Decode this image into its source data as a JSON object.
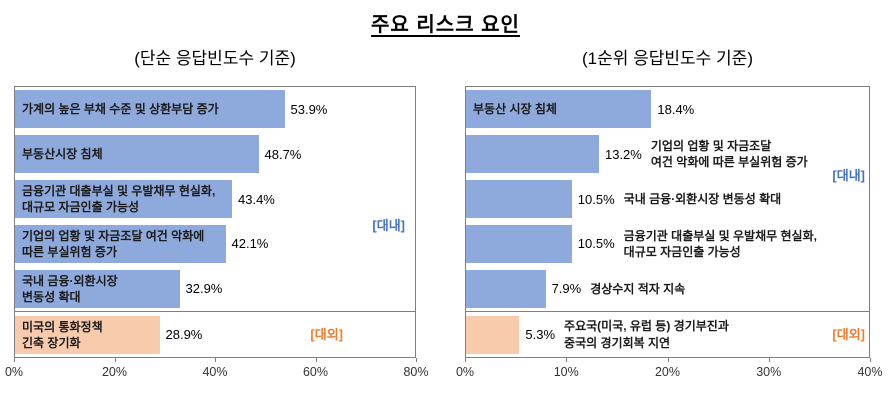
{
  "page_title": "주요 리스크 요인",
  "colors": {
    "bar_domestic": "#8EA9DB",
    "bar_external": "#F8CBAD",
    "tag_domestic": "#4472C4",
    "tag_external": "#ED7D31"
  },
  "chart_data": [
    {
      "type": "bar",
      "orientation": "horizontal",
      "subtitle": "(단순 응답빈도수 기준)",
      "xlim": [
        0,
        80
      ],
      "x_ticks": [
        {
          "value": 0,
          "label": "0%"
        },
        {
          "value": 20,
          "label": "20%"
        },
        {
          "value": 40,
          "label": "40%"
        },
        {
          "value": 60,
          "label": "60%"
        },
        {
          "value": 80,
          "label": "80%"
        }
      ],
      "domestic_tag": "[대내]",
      "external_tag": "[대외]",
      "bars": [
        {
          "category": "가계의 높은 부채 수준 및 상환부담 증가",
          "value": 53.9,
          "label": "53.9%",
          "group": "domestic",
          "category_position": "inside"
        },
        {
          "category": "부동산시장 침체",
          "value": 48.7,
          "label": "48.7%",
          "group": "domestic",
          "category_position": "inside"
        },
        {
          "category": "금융기관 대출부실 및 우발채무 현실화,\n대규모 자금인출 가능성",
          "value": 43.4,
          "label": "43.4%",
          "group": "domestic",
          "category_position": "inside"
        },
        {
          "category": "기업의 업황 및 자금조달 여건 악화에\n따른 부실위험 증가",
          "value": 42.1,
          "label": "42.1%",
          "group": "domestic",
          "category_position": "inside"
        },
        {
          "category": "국내 금융·외환시장\n변동성 확대",
          "value": 32.9,
          "label": "32.9%",
          "group": "domestic",
          "category_position": "inside"
        },
        {
          "category": "미국의 통화정책\n긴축 장기화",
          "value": 28.9,
          "label": "28.9%",
          "group": "external",
          "category_position": "inside"
        }
      ]
    },
    {
      "type": "bar",
      "orientation": "horizontal",
      "subtitle": "(1순위 응답빈도수 기준)",
      "xlim": [
        0,
        40
      ],
      "x_ticks": [
        {
          "value": 0,
          "label": "0%"
        },
        {
          "value": 10,
          "label": "10%"
        },
        {
          "value": 20,
          "label": "20%"
        },
        {
          "value": 30,
          "label": "30%"
        },
        {
          "value": 40,
          "label": "40%"
        }
      ],
      "domestic_tag": "[대내]",
      "external_tag": "[대외]",
      "bars": [
        {
          "category": "부동산 시장 침체",
          "value": 18.4,
          "label": "18.4%",
          "group": "domestic",
          "category_position": "inside"
        },
        {
          "category": "기업의 업황 및 자금조달\n여건 악화에 따른 부실위험 증가",
          "value": 13.2,
          "label": "13.2%",
          "group": "domestic",
          "category_position": "after"
        },
        {
          "category": "국내 금융·외환시장 변동성 확대",
          "value": 10.5,
          "label": "10.5%",
          "group": "domestic",
          "category_position": "after"
        },
        {
          "category": "금융기관 대출부실 및 우발채무 현실화,\n대규모 자금인출 가능성",
          "value": 10.5,
          "label": "10.5%",
          "group": "domestic",
          "category_position": "after"
        },
        {
          "category": "경상수지 적자 지속",
          "value": 7.9,
          "label": "7.9%",
          "group": "domestic",
          "category_position": "after"
        },
        {
          "category": "주요국(미국, 유럽 등) 경기부진과\n중국의 경기회복 지연",
          "value": 5.3,
          "label": "5.3%",
          "group": "external",
          "category_position": "after"
        }
      ]
    }
  ]
}
